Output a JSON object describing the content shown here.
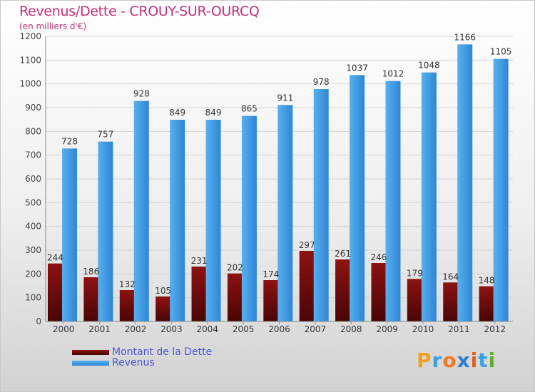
{
  "title": "Revenus/Dette - CROUY-SUR-OURCQ",
  "subtitle": "(en milliers d'€)",
  "logo_text": "Proxiti",
  "chart_data": {
    "type": "bar",
    "categories": [
      "2000",
      "2001",
      "2002",
      "2003",
      "2004",
      "2005",
      "2006",
      "2007",
      "2008",
      "2009",
      "2010",
      "2011",
      "2012"
    ],
    "series": [
      {
        "name": "Montant de la Dette",
        "values": [
          244,
          186,
          132,
          105,
          231,
          202,
          174,
          297,
          261,
          246,
          179,
          164,
          148
        ],
        "color": "#8b1010"
      },
      {
        "name": "Revenus",
        "values": [
          728,
          757,
          928,
          849,
          849,
          865,
          911,
          978,
          1037,
          1012,
          1048,
          1166,
          1105
        ],
        "color": "#3a9ae6"
      }
    ],
    "ylim": [
      0,
      1200
    ],
    "yticks": [
      0,
      100,
      200,
      300,
      400,
      500,
      600,
      700,
      800,
      900,
      1000,
      1100,
      1200
    ],
    "grid": true,
    "legend_position": "bottom-left"
  }
}
